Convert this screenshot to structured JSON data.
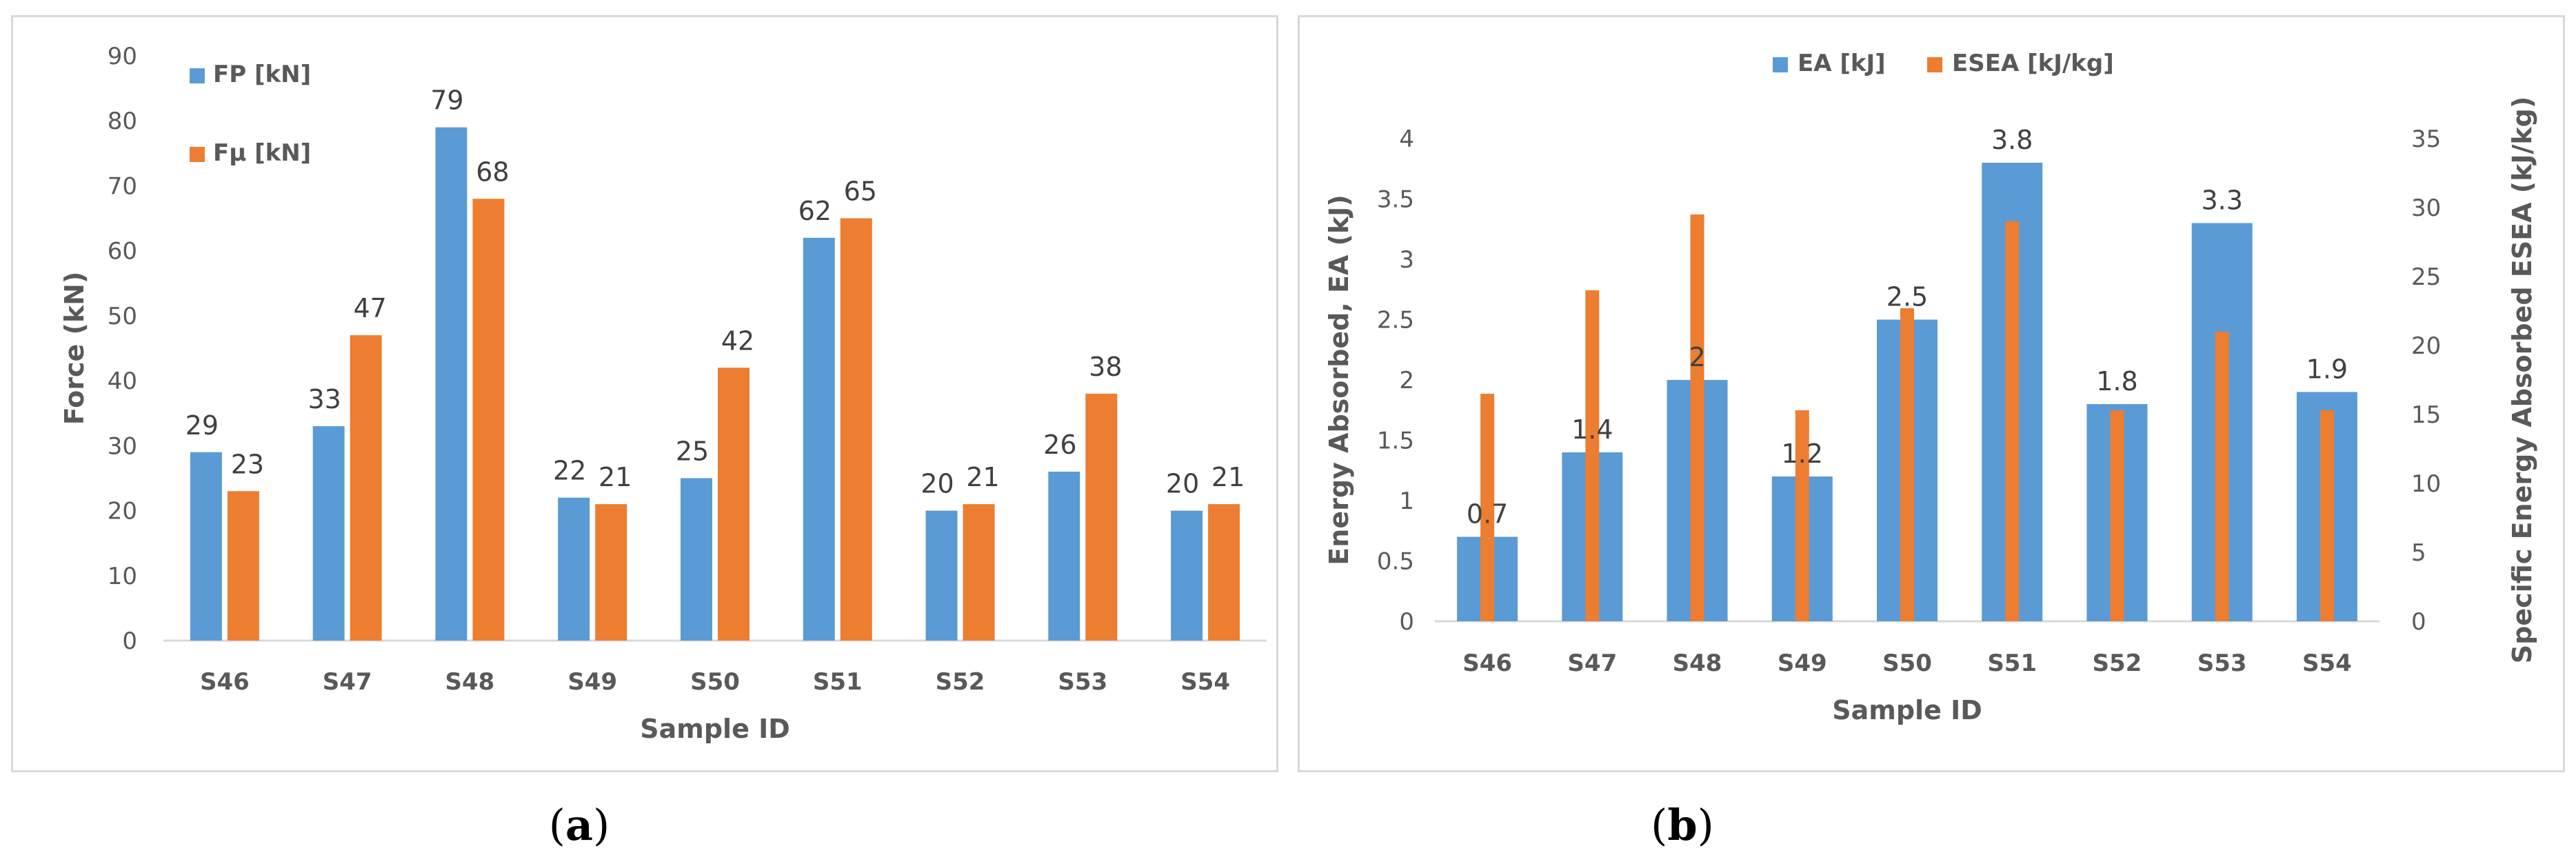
{
  "chart_data": [
    {
      "panel": "a",
      "type": "bar",
      "categories": [
        "S46",
        "S47",
        "S48",
        "S49",
        "S50",
        "S51",
        "S52",
        "S53",
        "S54"
      ],
      "series": [
        {
          "name": "FP [kN]",
          "values": [
            29,
            33,
            79,
            22,
            25,
            62,
            20,
            26,
            20
          ],
          "color": "#5b9bd5"
        },
        {
          "name": "Fμ [kN]",
          "values": [
            23,
            47,
            68,
            21,
            42,
            65,
            21,
            38,
            21
          ],
          "color": "#ed7d31"
        }
      ],
      "title": "",
      "xlabel": "Sample ID",
      "ylabel": "Force (kN)",
      "ylim": [
        0,
        90
      ],
      "yticks": [
        "0",
        "10",
        "20",
        "30",
        "40",
        "50",
        "60",
        "70",
        "80",
        "90"
      ],
      "grid": false,
      "legend": "top-left"
    },
    {
      "panel": "b",
      "type": "bar",
      "categories": [
        "S46",
        "S47",
        "S48",
        "S49",
        "S50",
        "S51",
        "S52",
        "S53",
        "S54"
      ],
      "series": [
        {
          "name": "EA [kJ]",
          "values": [
            0.7,
            1.4,
            2,
            1.2,
            2.5,
            3.8,
            1.8,
            3.3,
            1.9
          ],
          "labels": [
            "0.7",
            "1.4",
            "2",
            "1.2",
            "2.5",
            "3.8",
            "1.8",
            "3.3",
            "1.9"
          ],
          "color": "#5b9bd5",
          "axis": "left"
        },
        {
          "name": "ESEA [kJ/kg]",
          "values": [
            16.5,
            24,
            29.5,
            15.3,
            22.7,
            29,
            15.3,
            21,
            15.3
          ],
          "color": "#ed7d31",
          "axis": "right"
        }
      ],
      "title": "",
      "xlabel": "Sample ID",
      "ylabel": "Energy Absorbed, EA (kJ)",
      "ylabel_right": "Specific Energy Absorbed ESEA (kJ/kg)",
      "ylim": [
        0,
        4
      ],
      "ylim_right": [
        0,
        35
      ],
      "yticks": [
        "0",
        "0.5",
        "1",
        "1.5",
        "2",
        "2.5",
        "3",
        "3.5",
        "4"
      ],
      "yticks_right": [
        "0",
        "5",
        "10",
        "15",
        "20",
        "25",
        "30",
        "35"
      ],
      "grid": false,
      "legend": "top-center"
    }
  ],
  "captions": {
    "a": "a",
    "b": "b"
  }
}
